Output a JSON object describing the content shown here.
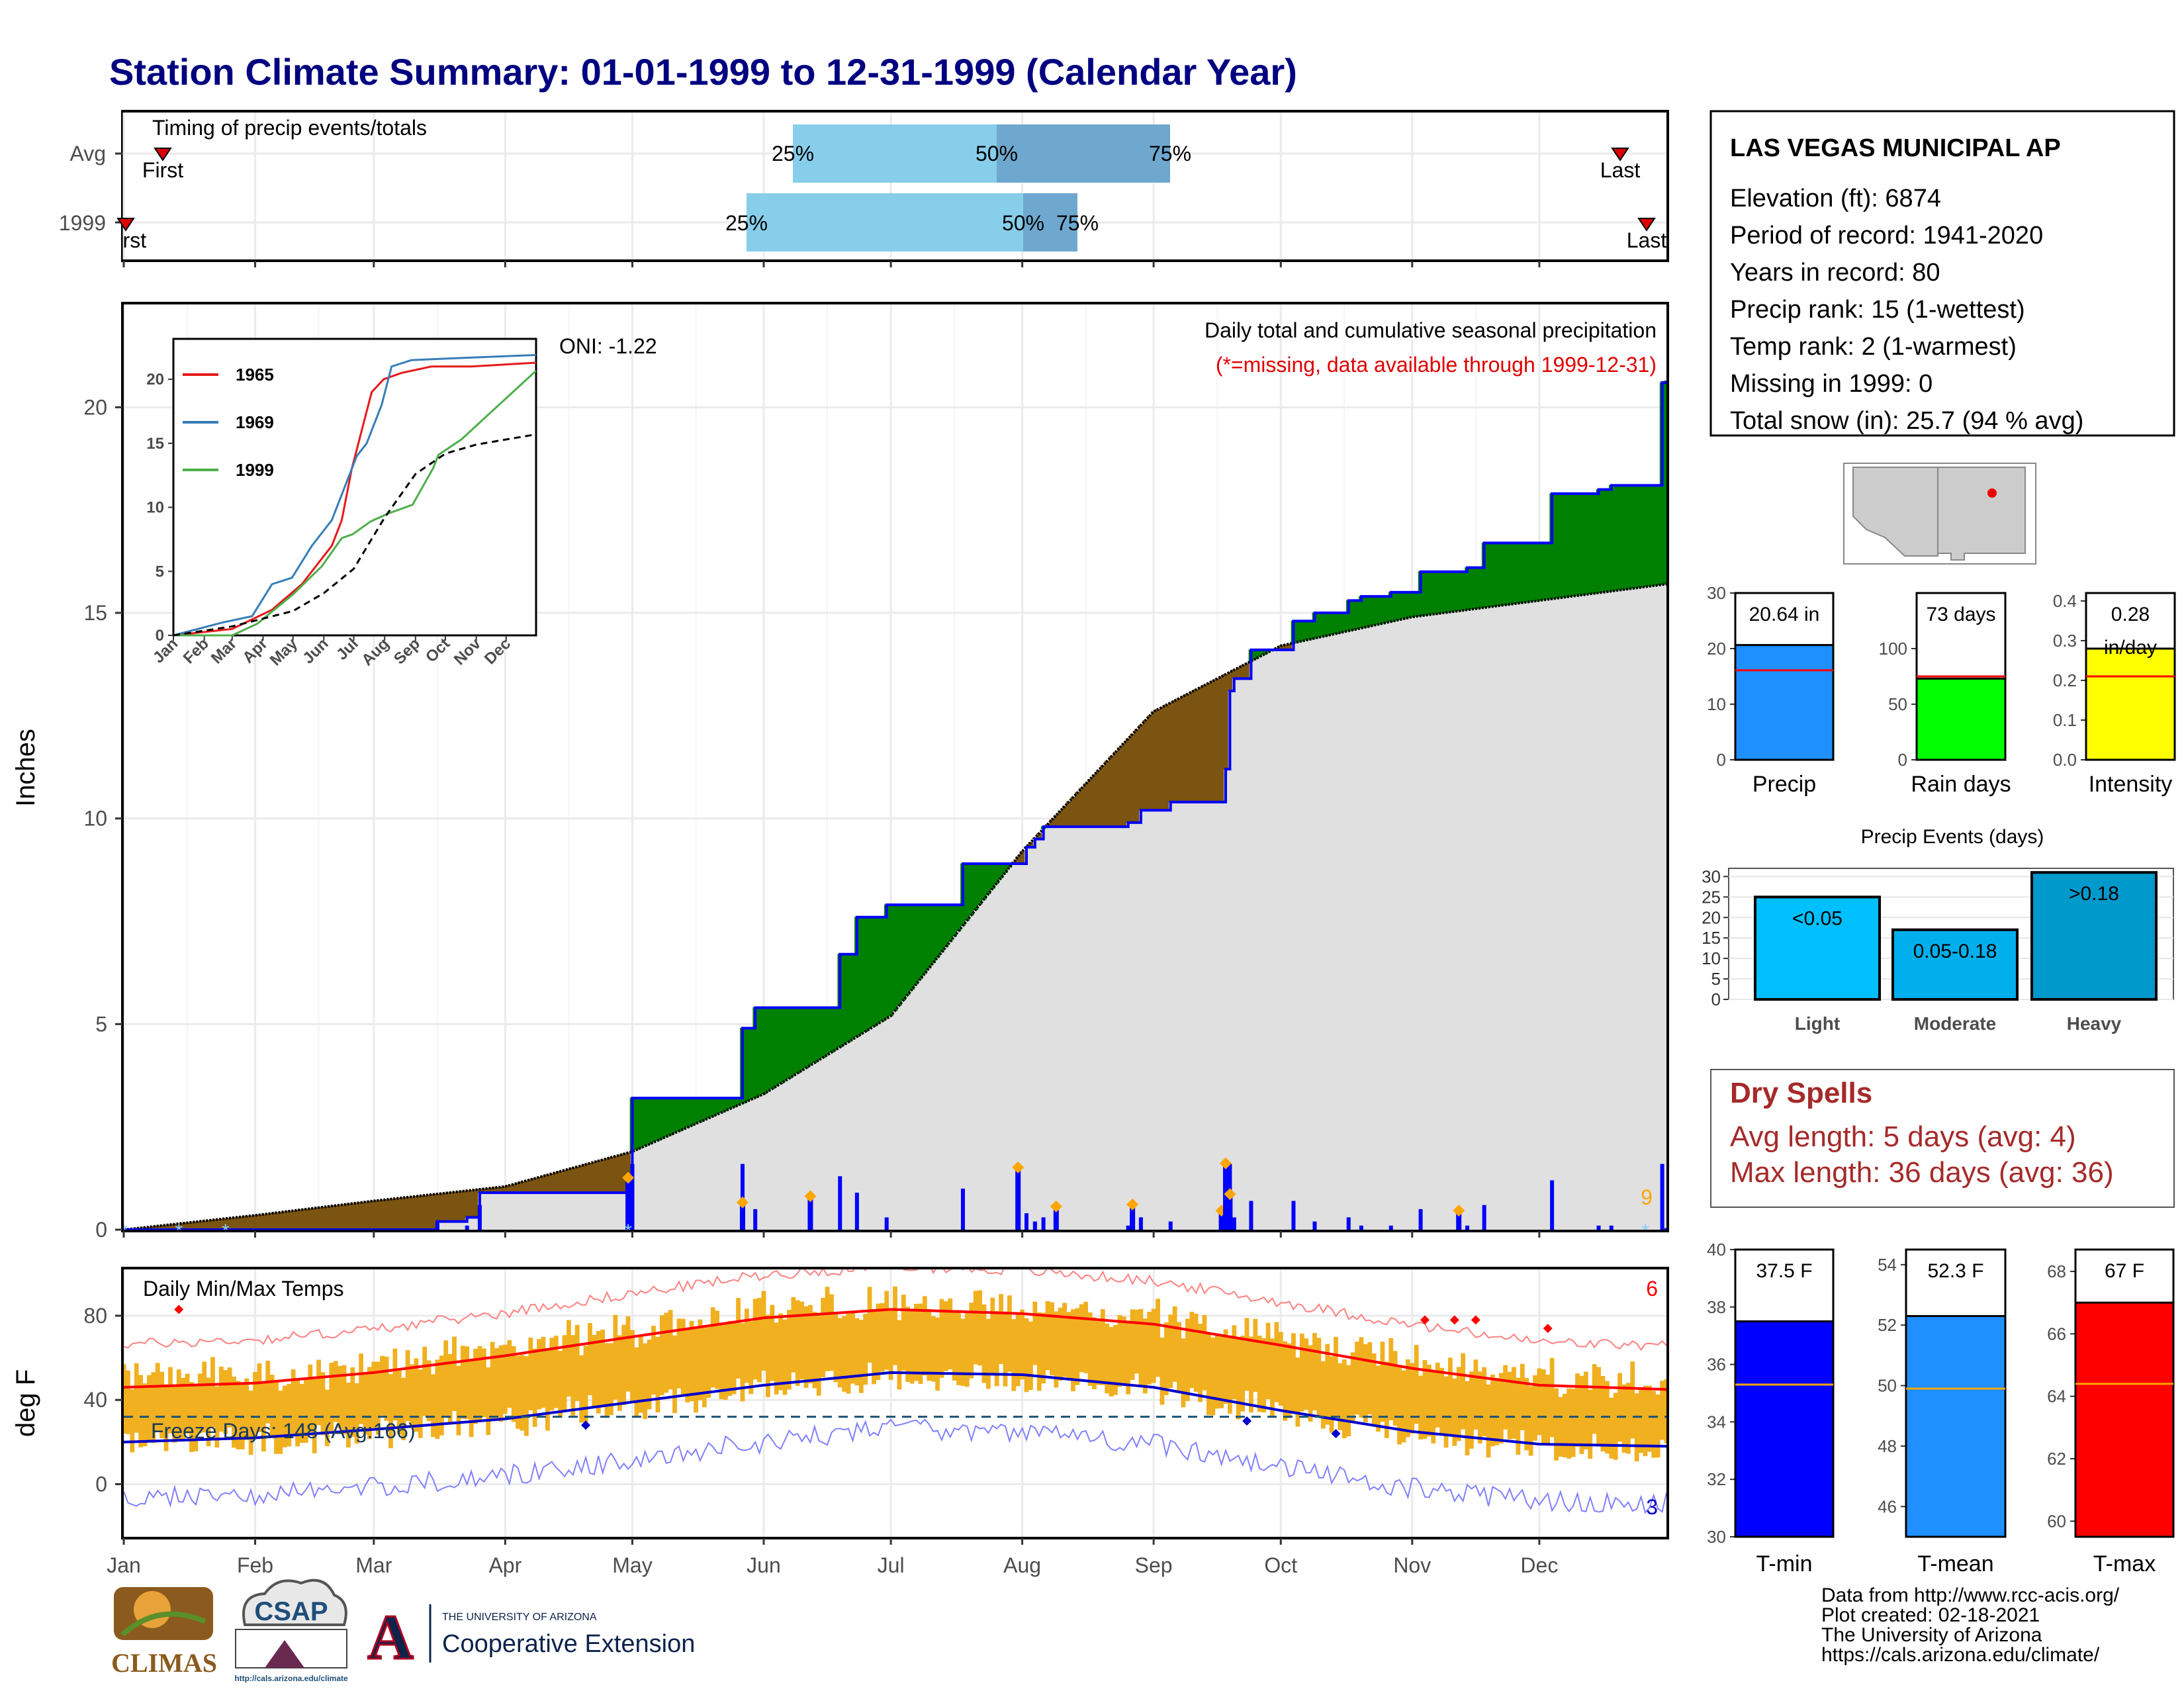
{
  "title": "Station Climate Summary: 01-01-1999 to 12-31-1999 (Calendar Year)",
  "colors": {
    "title": "#000080",
    "q1": "#87ceeb",
    "q2": "#6fa8cf",
    "cum_fill": "#008000",
    "cum_line": "#0000ff",
    "normal_fill": "#e0e0e0",
    "deficit_fill": "#7a5410",
    "precip_bar": "#0000ff",
    "marker": "#ffa500",
    "temp_bar": "#f0b020",
    "tmax": "#ff0000",
    "tmin": "#0000cc",
    "freeze": "#1a5276",
    "dry": "#a52a2a"
  },
  "timing": {
    "label": "Timing of precip events/totals",
    "rows": [
      {
        "label": "Avg",
        "first_label": "First",
        "last_label": "Last",
        "p25": "25%",
        "p50": "50%",
        "p75": "75%"
      },
      {
        "label": "1999",
        "first_label": "First",
        "last_label": "Last",
        "p25": "25%",
        "p50": "50%",
        "p75": "75%"
      }
    ]
  },
  "precip_panel": {
    "ylabel": "Inches",
    "title": "Daily total and cumulative seasonal precipitation",
    "subtitle": "(*=missing, data available through 1999-12-31)",
    "oni": "ONI: -1.22",
    "corner_count": "9",
    "yticks": [
      "0",
      "5",
      "10",
      "15",
      "20"
    ]
  },
  "inset": {
    "legend": [
      "1965",
      "1969",
      "1999"
    ],
    "yticks": [
      "0",
      "5",
      "10",
      "15",
      "20"
    ],
    "months": [
      "Jan",
      "Feb",
      "Mar",
      "Apr",
      "May",
      "Jun",
      "Jul",
      "Aug",
      "Sep",
      "Oct",
      "Nov",
      "Dec"
    ]
  },
  "temp_panel": {
    "ylabel": "deg F",
    "title": "Daily Min/Max Temps",
    "freeze_label": "Freeze Days: 148 (Avg:166)",
    "count_hi": "6",
    "count_lo": "3",
    "yticks": [
      "0",
      "40",
      "80"
    ]
  },
  "months": [
    "Jan",
    "Feb",
    "Mar",
    "Apr",
    "May",
    "Jun",
    "Jul",
    "Aug",
    "Sep",
    "Oct",
    "Nov",
    "Dec"
  ],
  "info": {
    "station": "LAS VEGAS MUNICIPAL AP",
    "lines": [
      "Elevation (ft): 6874",
      "Period of record: 1941-2020",
      "Years in record: 80",
      "Precip rank: 15 (1-wettest)",
      "Temp rank: 2 (1-warmest)",
      "Missing in 1999: 0",
      "Total snow (in): 25.7 (94 % avg)"
    ]
  },
  "summary_bars": [
    {
      "label": "Precip",
      "value_label": "20.64 in",
      "value": 20.64,
      "avg": 16.1,
      "ymax": 30,
      "ticks": [
        "0",
        "10",
        "20",
        "30"
      ],
      "color": "#1e90ff"
    },
    {
      "label": "Rain days",
      "value_label": "73 days",
      "value": 73,
      "avg": 75,
      "ymax": 150,
      "ticks": [
        "0",
        "50",
        "100"
      ],
      "color": "#00ff00"
    },
    {
      "label": "Intensity",
      "value_label": "0.28",
      "value_label2": "in/day",
      "value": 0.28,
      "avg": 0.21,
      "ymax": 0.42,
      "ticks": [
        "0.0",
        "0.1",
        "0.2",
        "0.3",
        "0.4"
      ],
      "color": "#ffff00"
    }
  ],
  "events": {
    "title": "Precip Events (days)",
    "categories": [
      "Light",
      "Moderate",
      "Heavy"
    ],
    "bar_labels": [
      "<0.05",
      "0.05-0.18",
      ">0.18"
    ],
    "values": [
      25,
      17,
      31
    ],
    "yticks": [
      "0",
      "5",
      "10",
      "15",
      "20",
      "25",
      "30"
    ]
  },
  "dry_spells": {
    "title": "Dry Spells",
    "avg_line": "Avg length: 5 days (avg: 4)",
    "max_line": "Max length: 36 days (avg: 36)"
  },
  "temp_bars": [
    {
      "label": "T-min",
      "value_label": "37.5 F",
      "value": 37.5,
      "avg": 35.3,
      "ymin": 30,
      "ymax": 40,
      "ticks": [
        "30",
        "32",
        "34",
        "36",
        "38",
        "40"
      ],
      "color": "#0000ff"
    },
    {
      "label": "T-mean",
      "value_label": "52.3 F",
      "value": 52.3,
      "avg": 49.9,
      "ymin": 45,
      "ymax": 54.5,
      "ticks": [
        "46",
        "48",
        "50",
        "52",
        "54"
      ],
      "color": "#1e90ff"
    },
    {
      "label": "T-max",
      "value_label": "67 F",
      "value": 67,
      "avg": 64.4,
      "ymin": 59.5,
      "ymax": 68.7,
      "ticks": [
        "60",
        "62",
        "64",
        "66",
        "68"
      ],
      "color": "#ff0000"
    }
  ],
  "footer": [
    "Data from http://www.rcc-acis.org/",
    "Plot created: 02-18-2021",
    "The University of Arizona",
    "https://cals.arizona.edu/climate/"
  ],
  "logos": {
    "climas": "CLIMAS",
    "csap": "CSAP",
    "csap_url": "http://cals.arizona.edu/climate",
    "ua_line1": "THE UNIVERSITY OF ARIZONA",
    "ua_line2": "Cooperative Extension",
    "ua_mark": "A"
  },
  "chart_data": [
    {
      "type": "area",
      "title": "Daily total and cumulative seasonal precipitation",
      "ylabel": "Inches",
      "ylim": [
        0,
        22.5
      ],
      "x_unit": "day of year",
      "cumulative_1999": [
        [
          1,
          0
        ],
        [
          60,
          0
        ],
        [
          75,
          0.2
        ],
        [
          82,
          0.3
        ],
        [
          85,
          0.9
        ],
        [
          120,
          0.9
        ],
        [
          121,
          3.2
        ],
        [
          145,
          3.2
        ],
        [
          147,
          4.9
        ],
        [
          150,
          5.4
        ],
        [
          167,
          5.4
        ],
        [
          170,
          6.7
        ],
        [
          174,
          7.6
        ],
        [
          181,
          7.9
        ],
        [
          195,
          7.9
        ],
        [
          199,
          8.9
        ],
        [
          212,
          8.9
        ],
        [
          214,
          9.3
        ],
        [
          216,
          9.5
        ],
        [
          218,
          9.8
        ],
        [
          236,
          9.8
        ],
        [
          238,
          9.9
        ],
        [
          241,
          10.2
        ],
        [
          248,
          10.4
        ],
        [
          257,
          10.4
        ],
        [
          261,
          11.2
        ],
        [
          262,
          13.1
        ],
        [
          263,
          13.4
        ],
        [
          267,
          14.1
        ],
        [
          273,
          14.1
        ],
        [
          277,
          14.8
        ],
        [
          280,
          14.8
        ],
        [
          282,
          15.0
        ],
        [
          290,
          15.3
        ],
        [
          293,
          15.4
        ],
        [
          300,
          15.5
        ],
        [
          307,
          16.0
        ],
        [
          318,
          16.1
        ],
        [
          322,
          16.7
        ],
        [
          333,
          16.7
        ],
        [
          338,
          17.9
        ],
        [
          349,
          18.0
        ],
        [
          352,
          18.1
        ],
        [
          364,
          20.6
        ],
        [
          365,
          20.64
        ]
      ],
      "normal_cumulative": [
        [
          1,
          0
        ],
        [
          32,
          0.35
        ],
        [
          60,
          0.7
        ],
        [
          91,
          1.05
        ],
        [
          121,
          1.9
        ],
        [
          152,
          3.3
        ],
        [
          182,
          5.2
        ],
        [
          213,
          9.2
        ],
        [
          244,
          12.6
        ],
        [
          274,
          14.2
        ],
        [
          305,
          14.9
        ],
        [
          335,
          15.3
        ],
        [
          365,
          15.7
        ]
      ],
      "daily_precip_highlights": [
        [
          120,
          1.2
        ],
        [
          147,
          0.6
        ],
        [
          163,
          0.75
        ],
        [
          212,
          1.45
        ],
        [
          221,
          0.5
        ],
        [
          239,
          0.55
        ],
        [
          260,
          0.4
        ],
        [
          261,
          1.55
        ],
        [
          262,
          0.8
        ],
        [
          316,
          0.4
        ]
      ]
    },
    {
      "type": "line",
      "title": "Daily Min/Max Temps",
      "ylabel": "deg F",
      "ylim": [
        -25,
        102
      ],
      "series": [
        {
          "name": "T-max normal",
          "x": [
            1,
            32,
            60,
            91,
            121,
            152,
            182,
            213,
            244,
            274,
            305,
            335,
            365
          ],
          "y": [
            46,
            48,
            53,
            61,
            70,
            79,
            83,
            81,
            76,
            66,
            55,
            47,
            45
          ]
        },
        {
          "name": "T-min normal",
          "x": [
            1,
            32,
            60,
            91,
            121,
            152,
            182,
            213,
            244,
            274,
            305,
            335,
            365
          ],
          "y": [
            20,
            22,
            26,
            31,
            39,
            47,
            53,
            52,
            46,
            35,
            25,
            19,
            18
          ]
        }
      ],
      "freeze_threshold": 32
    },
    {
      "type": "line",
      "title": "inset cumulative",
      "ylim": [
        0,
        22
      ],
      "series": [
        {
          "name": "1965",
          "x": [
            1,
            60,
            100,
            130,
            150,
            160,
            170,
            180,
            190,
            200,
            212,
            230,
            260,
            300,
            365
          ],
          "y": [
            0,
            0.5,
            2,
            4,
            6,
            7,
            9,
            13,
            16,
            19,
            20,
            20.5,
            21,
            21,
            21.3
          ]
        },
        {
          "name": "1969",
          "x": [
            1,
            50,
            80,
            100,
            120,
            140,
            160,
            170,
            185,
            195,
            210,
            220,
            240,
            300,
            365
          ],
          "y": [
            0,
            1,
            1.5,
            4,
            4.5,
            7,
            9,
            11,
            14,
            15,
            18,
            21,
            21.5,
            21.7,
            21.9
          ]
        },
        {
          "name": "1999",
          "x": [
            1,
            60,
            85,
            121,
            150,
            170,
            181,
            199,
            216,
            241,
            262,
            267,
            290,
            364,
            365
          ],
          "y": [
            0,
            0,
            0.9,
            3.2,
            5.4,
            7.6,
            7.9,
            8.9,
            9.5,
            10.2,
            13.1,
            14.1,
            15.3,
            20.6,
            20.64
          ]
        },
        {
          "name": "normal",
          "x": [
            1,
            60,
            121,
            152,
            182,
            213,
            244,
            274,
            305,
            365
          ],
          "y": [
            0,
            0.7,
            1.9,
            3.3,
            5.2,
            9.2,
            12.6,
            14.2,
            14.9,
            15.7
          ]
        }
      ]
    }
  ]
}
